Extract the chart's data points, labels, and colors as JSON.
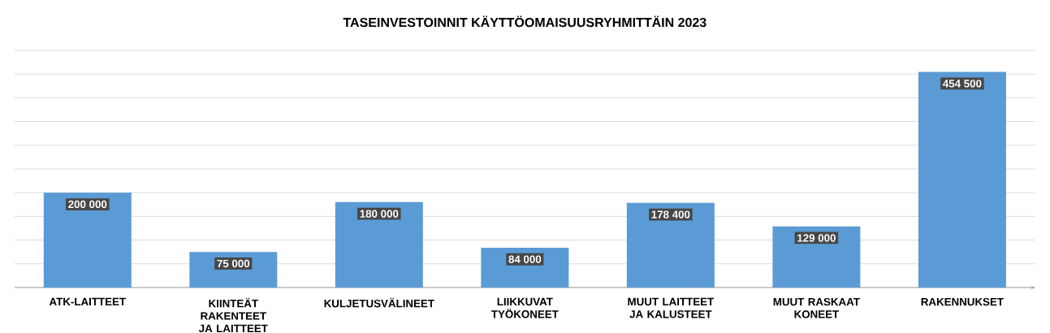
{
  "chart_data": {
    "type": "bar",
    "title": "TASEINVESTOINNIT KÄYTTÖOMAISUUSRYHMITTÄIN 2023",
    "categories": [
      "ATK-LAITTEET",
      "KIINTEÄT RAKENTEET JA LAITTEET",
      "KULJETUSVÄLINEET",
      "LIIKKUVAT TYÖKONEET",
      "MUUT LAITTEET JA KALUSTEET",
      "MUUT RASKAAT KONEET",
      "RAKENNUKSET"
    ],
    "values": [
      200000,
      75000,
      180000,
      84000,
      178400,
      129000,
      454500
    ],
    "value_labels": [
      "200 000",
      "75 000",
      "180 000",
      "84 000",
      "178 400",
      "129 000",
      "454 500"
    ],
    "color": "#5b9bd5",
    "ylim": [
      0,
      500000
    ],
    "yticks": [
      {
        "value": 0,
        "label": null
      },
      {
        "value": 50000,
        "label": null
      },
      {
        "value": 100000,
        "label": null
      },
      {
        "value": 150000,
        "label": null
      },
      {
        "value": 200000,
        "label": null
      },
      {
        "value": 250000,
        "label": null
      },
      {
        "value": 300000,
        "label": null
      },
      {
        "value": 350000,
        "label": null
      },
      {
        "value": 400000,
        "label": null
      },
      {
        "value": 450000,
        "label": null
      },
      {
        "value": 500000,
        "label": null
      }
    ],
    "grid": "y",
    "tick_labels": "x"
  }
}
